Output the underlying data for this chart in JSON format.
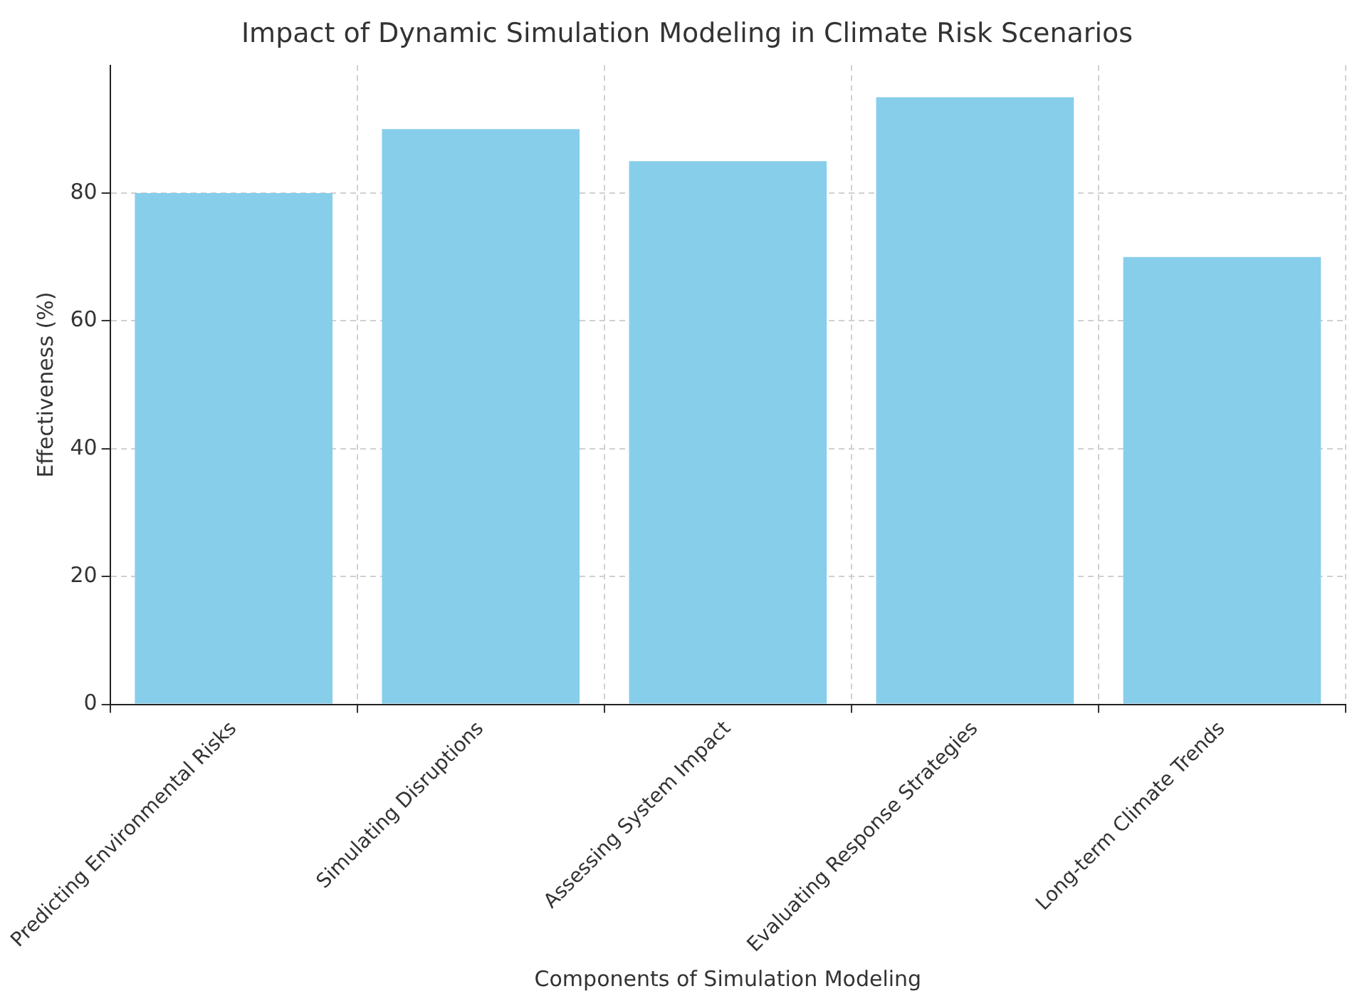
{
  "chart_data": {
    "type": "bar",
    "title": "Impact of Dynamic Simulation Modeling in Climate Risk Scenarios",
    "xlabel": "Components of Simulation Modeling",
    "ylabel": "Effectiveness (%)",
    "categories": [
      "Predicting Environmental Risks",
      "Simulating Disruptions",
      "Assessing System Impact",
      "Evaluating Response Strategies",
      "Long-term Climate Trends"
    ],
    "values": [
      80,
      90,
      85,
      95,
      70
    ],
    "color": "#87ceeb",
    "ylim": [
      0,
      100
    ],
    "yticks": [
      0,
      20,
      40,
      60,
      80
    ],
    "grid": true
  }
}
